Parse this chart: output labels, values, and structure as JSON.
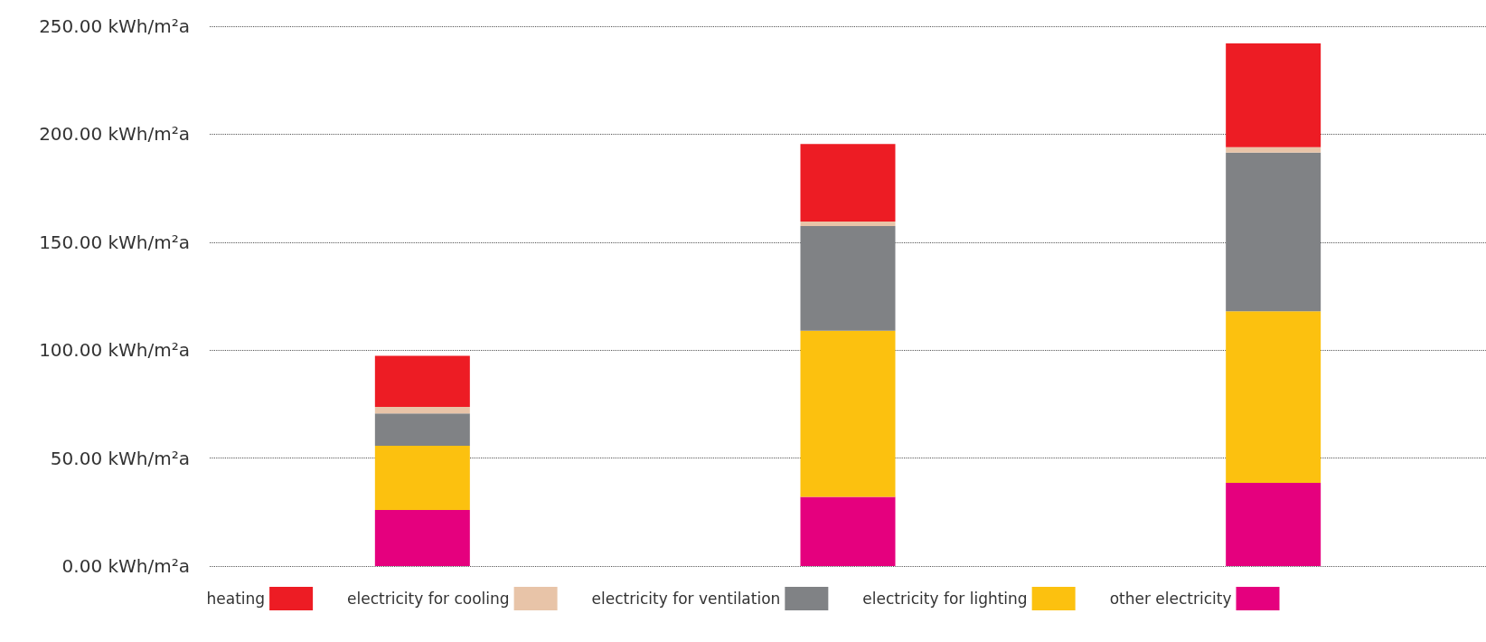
{
  "chart_data": {
    "type": "bar",
    "stacked": true,
    "categories": [
      null,
      null,
      null
    ],
    "series": [
      {
        "name": "other electricity",
        "color": "#e5007e",
        "values": [
          26,
          32,
          38.5
        ]
      },
      {
        "name": "electricity for lighting",
        "color": "#fcc10f",
        "values": [
          29.7,
          77,
          79.5
        ]
      },
      {
        "name": "electricity for ventilation",
        "color": "#808285",
        "values": [
          15,
          48.5,
          73.5
        ]
      },
      {
        "name": "electricity for cooling",
        "color": "#e8c4a8",
        "values": [
          3,
          2,
          2.5
        ]
      },
      {
        "name": "heating",
        "color": "#ed1c24",
        "values": [
          23.7,
          36,
          48
        ]
      }
    ],
    "ylim": [
      0,
      250
    ],
    "yticks": [
      {
        "value": 0,
        "label": "0.00 kWh/m²a"
      },
      {
        "value": 50,
        "label": "50.00 kWh/m²a"
      },
      {
        "value": 100,
        "label": "100.00 kWh/m²a"
      },
      {
        "value": 150,
        "label": "150.00 kWh/m²a"
      },
      {
        "value": 200,
        "label": "200.00 kWh/m²a"
      },
      {
        "value": 250,
        "label": "250.00 kWh/m²a"
      }
    ],
    "grid": "y",
    "legend": "bottom"
  }
}
